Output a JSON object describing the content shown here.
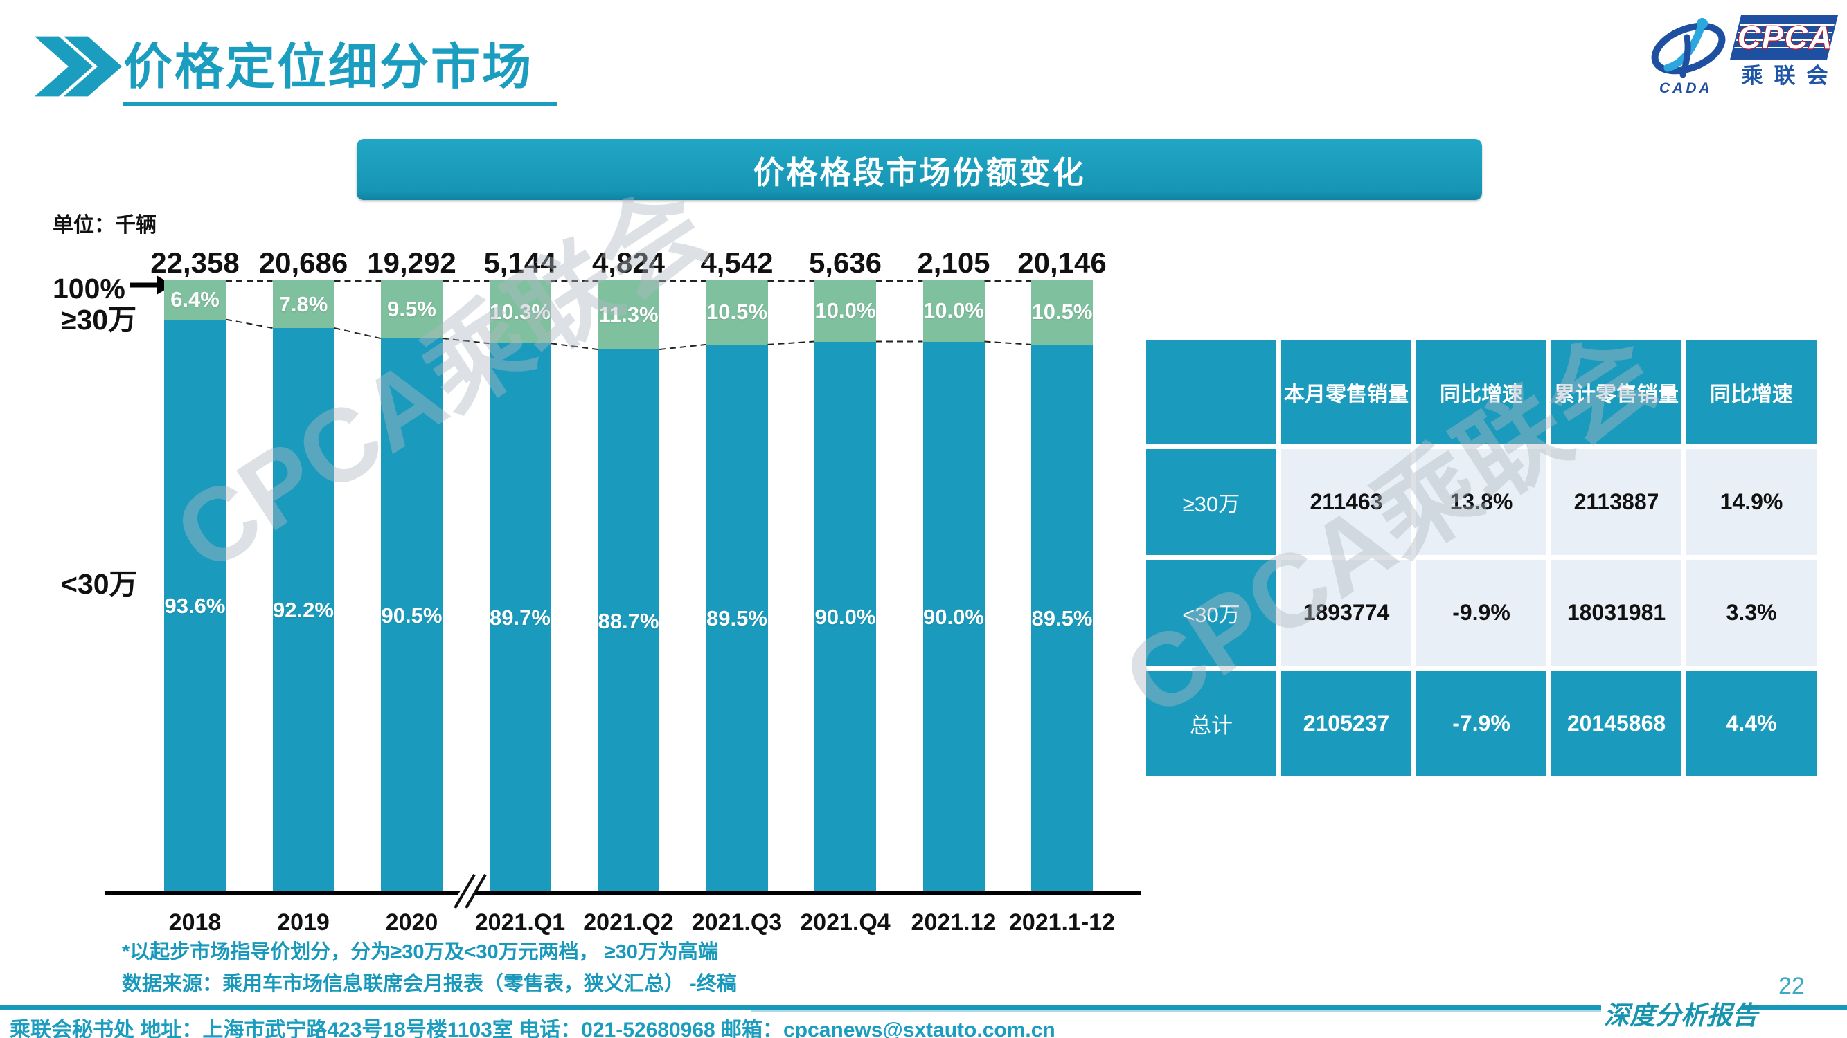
{
  "header": {
    "title": "价格定位细分市场"
  },
  "logo": {
    "cada_text": "CADA",
    "cpca_text": "CPCA",
    "chinese_text": "乘联会"
  },
  "banner": {
    "title": "价格格段市场份额变化"
  },
  "chart": {
    "unit_label": "单位：千辆",
    "axis_100_label": "100%",
    "axis_ge30_label": "≥30万",
    "axis_lt30_label": "<30万"
  },
  "chart_data": {
    "type": "bar",
    "stacked": true,
    "title": "价格格段市场份额变化",
    "unit": "千辆",
    "categories": [
      "2018",
      "2019",
      "2020",
      "2021.Q1",
      "2021.Q2",
      "2021.Q3",
      "2021.Q4",
      "2021.12",
      "2021.1-12"
    ],
    "totals": [
      "22,358",
      "20,686",
      "19,292",
      "5,144",
      "4,824",
      "4,542",
      "5,636",
      "2,105",
      "20,146"
    ],
    "series": [
      {
        "name": "≥30万",
        "color": "#7FC09E",
        "values": [
          6.4,
          7.8,
          9.5,
          10.3,
          11.3,
          10.5,
          10.0,
          10.0,
          10.5
        ],
        "labels": [
          "6.4%",
          "7.8%",
          "9.5%",
          "10.3%",
          "11.3%",
          "10.5%",
          "10.0%",
          "10.0%",
          "10.5%"
        ]
      },
      {
        "name": "<30万",
        "color": "#1A9BBD",
        "values": [
          93.6,
          92.2,
          90.5,
          89.7,
          88.7,
          89.5,
          90.0,
          90.0,
          89.5
        ],
        "labels": [
          "93.6%",
          "92.2%",
          "90.5%",
          "89.7%",
          "88.7%",
          "89.5%",
          "90.0%",
          "90.0%",
          "89.5%"
        ]
      }
    ],
    "ylim": [
      0,
      100
    ],
    "axis_break_between": [
      "2020",
      "2021.Q1"
    ],
    "legend_position": "left-axis"
  },
  "table": {
    "headers": [
      "",
      "本月零售销量",
      "同比增速",
      "累计零售销量",
      "同比增速"
    ],
    "rows": [
      {
        "label": "≥30万",
        "cells": [
          "211463",
          "13.8%",
          "2113887",
          "14.9%"
        ],
        "style": "light"
      },
      {
        "label": "<30万",
        "cells": [
          "1893774",
          "-9.9%",
          "18031981",
          "3.3%"
        ],
        "style": "light"
      },
      {
        "label": "总计",
        "cells": [
          "2105237",
          "-7.9%",
          "20145868",
          "4.4%"
        ],
        "style": "teal"
      }
    ]
  },
  "footnotes": {
    "line1": "*以起步市场指导价划分，分为≥30万及<30万元两档， ≥30万为高端",
    "line2": "数据来源：乘用车市场信息联席会月报表（零售表，狭义汇总） -终稿"
  },
  "footer": {
    "address": "乘联会秘书处   地址：上海市武宁路423号18号楼1103室 电话：021-52680968   邮箱：cpcanews@sxtauto.com.cn",
    "report_label": "深度分析报告",
    "page_number": "22"
  },
  "watermark": {
    "text": "CPCA乘联会"
  },
  "colors": {
    "teal": "#1A9BBD",
    "green": "#7FC09E",
    "light_cell": "#E9EFF6",
    "logo_blue": "#1F4FA0",
    "logo_light_blue": "#2BA7DE",
    "logo_red": "#C21D25"
  }
}
